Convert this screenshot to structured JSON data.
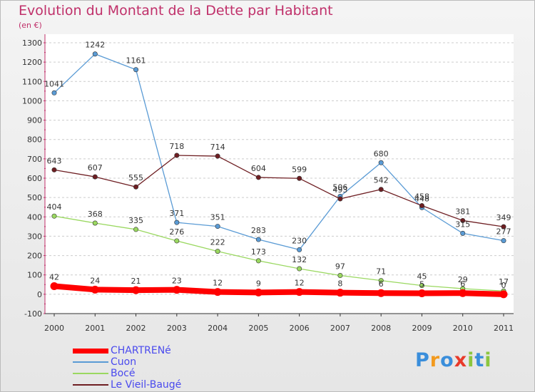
{
  "chart_data": {
    "type": "line",
    "title": "Evolution du Montant de la Dette par Habitant",
    "unit_label": "(en €)",
    "x": [
      "2000",
      "2001",
      "2002",
      "2003",
      "2004",
      "2005",
      "2006",
      "2007",
      "2008",
      "2009",
      "2010",
      "2011"
    ],
    "yticks": [
      "-100",
      "0",
      "100",
      "200",
      "300",
      "400",
      "500",
      "600",
      "700",
      "800",
      "900",
      "1000",
      "1100",
      "1200",
      "1300"
    ],
    "ylim": [
      -100,
      1300
    ],
    "grid": "horizontal dashed",
    "legend_position": "bottom-left",
    "series": [
      {
        "name": "CHARTRENé",
        "color": "#ff0000",
        "values": [
          42,
          24,
          21,
          23,
          12,
          9,
          12,
          8,
          6,
          5,
          6,
          0
        ],
        "labels": [
          "42",
          "24",
          "21",
          "23",
          "12",
          "9",
          "12",
          "8",
          "6",
          "5",
          "6",
          "0"
        ]
      },
      {
        "name": "Cuon",
        "color": "#5a9bd5",
        "values": [
          1041,
          1242,
          1161,
          371,
          351,
          283,
          230,
          506,
          680,
          448,
          315,
          277
        ],
        "labels": [
          "1041",
          "1242",
          "1161",
          "371",
          "351",
          "283",
          "230",
          "506",
          "680",
          "448",
          "315",
          "277"
        ]
      },
      {
        "name": "Bocé",
        "color": "#9ad860",
        "values": [
          404,
          368,
          335,
          276,
          222,
          173,
          132,
          97,
          71,
          45,
          29,
          17
        ],
        "labels": [
          "404",
          "368",
          "335",
          "276",
          "222",
          "173",
          "132",
          "97",
          "71",
          "45",
          "29",
          "17"
        ]
      },
      {
        "name": "Le Vieil-Baugé",
        "color": "#6e1e22",
        "values": [
          643,
          607,
          555,
          718,
          714,
          604,
          599,
          493,
          542,
          458,
          381,
          349
        ],
        "labels": [
          "643",
          "607",
          "555",
          "718",
          "714",
          "604",
          "599",
          "493",
          "542",
          "458",
          "381",
          "349"
        ]
      }
    ]
  },
  "brand": {
    "text": "Proxiti",
    "letters": [
      "P",
      "r",
      "o",
      "x",
      "i",
      "t",
      "i"
    ],
    "colors": [
      "#3a8edb",
      "#f29a1e",
      "#3a8edb",
      "#e83a2a",
      "#8cc63f",
      "#3a8edb",
      "#8cc63f"
    ]
  }
}
